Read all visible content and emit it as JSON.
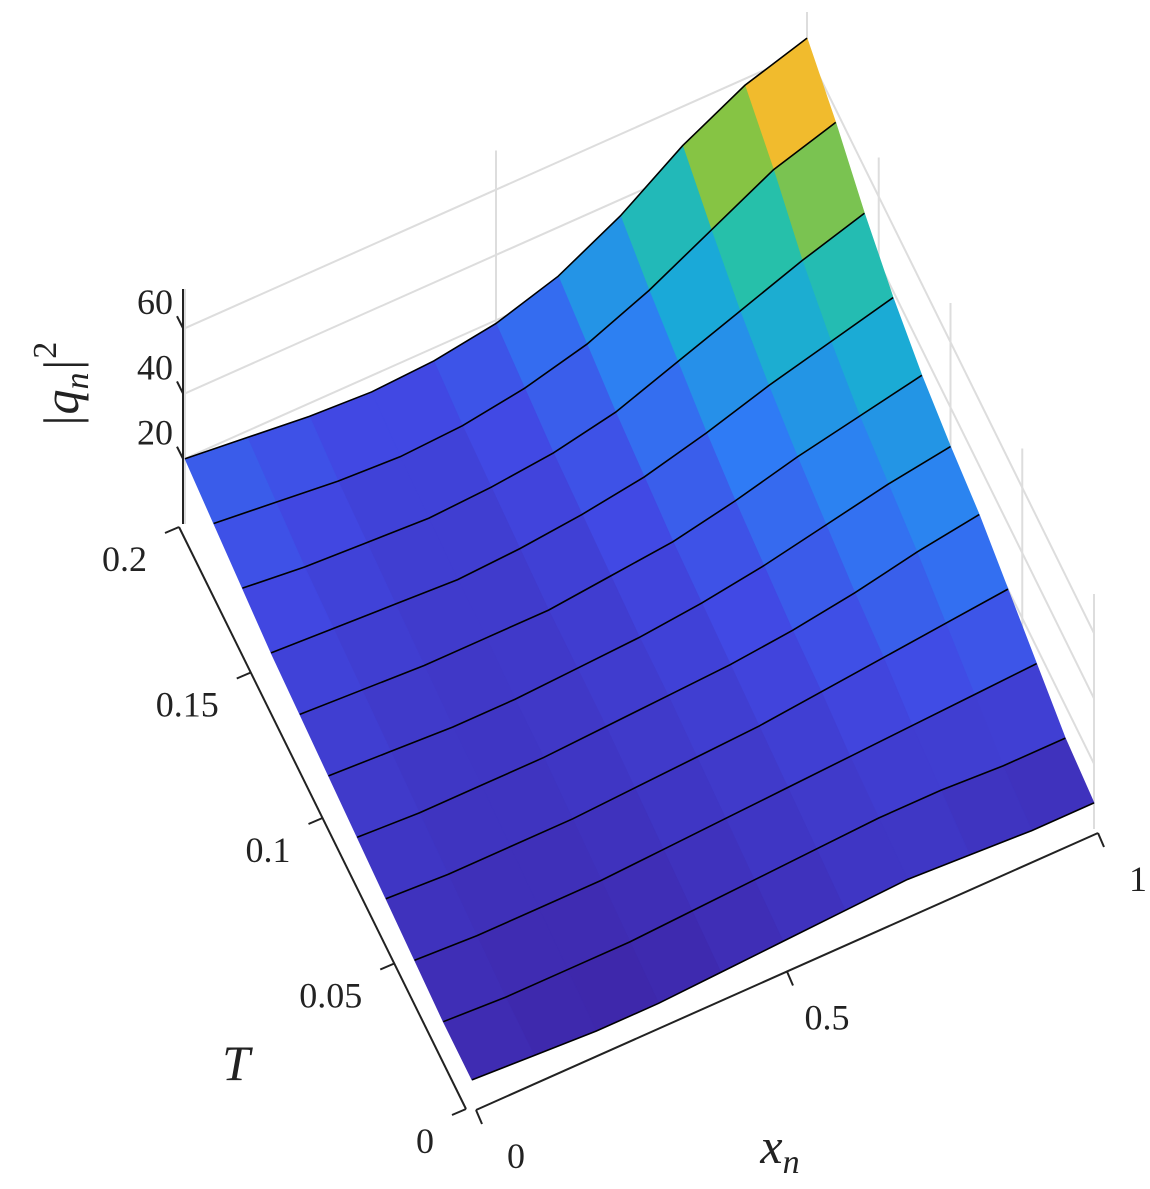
{
  "chart_data": {
    "type": "surface",
    "xlabel": {
      "base": "x",
      "sub": "n"
    },
    "ylabel": "T",
    "zlabel": {
      "base": "|q",
      "sub": "n",
      "close": "|",
      "sup": "2"
    },
    "x": [
      0,
      0.1,
      0.2,
      0.3,
      0.4,
      0.5,
      0.6,
      0.7,
      0.8,
      0.9,
      1
    ],
    "y": [
      0,
      0.02,
      0.04,
      0.06,
      0.08,
      0.1,
      0.12,
      0.14,
      0.16,
      0.18,
      0.2
    ],
    "z": [
      [
        8,
        7,
        6,
        6,
        7,
        8,
        9,
        10,
        9,
        8,
        8
      ],
      [
        8,
        7,
        7,
        7,
        8,
        9,
        10,
        11,
        11,
        10,
        10
      ],
      [
        9,
        8,
        8,
        8,
        9,
        10,
        11,
        12,
        13,
        14,
        15
      ],
      [
        10,
        9,
        9,
        9,
        10,
        11,
        12,
        14,
        16,
        18,
        20
      ],
      [
        11,
        10,
        10,
        10,
        11,
        12,
        13,
        15,
        18,
        22,
        25
      ],
      [
        12,
        11,
        10,
        10,
        11,
        12,
        14,
        17,
        21,
        25,
        28
      ],
      [
        13,
        12,
        11,
        11,
        11,
        13,
        15,
        19,
        24,
        28,
        32
      ],
      [
        14,
        13,
        12,
        11,
        12,
        14,
        17,
        22,
        28,
        33,
        38
      ],
      [
        16,
        14,
        13,
        12,
        13,
        15,
        19,
        26,
        33,
        40,
        46
      ],
      [
        18,
        16,
        14,
        13,
        14,
        17,
        22,
        30,
        40,
        50,
        56
      ],
      [
        20,
        18,
        16,
        15,
        16,
        19,
        25,
        35,
        48,
        58,
        64
      ]
    ],
    "xlim": [
      0,
      1
    ],
    "xticks": [
      0,
      0.5,
      1
    ],
    "ylim": [
      0,
      0.2
    ],
    "yticks": [
      0,
      0.05,
      0.1,
      0.15,
      0.2
    ],
    "zlim": [
      0,
      72
    ],
    "zticks": [
      20,
      40,
      60
    ],
    "colormap": "parula",
    "grid": true,
    "edgecolor": "#000000"
  }
}
